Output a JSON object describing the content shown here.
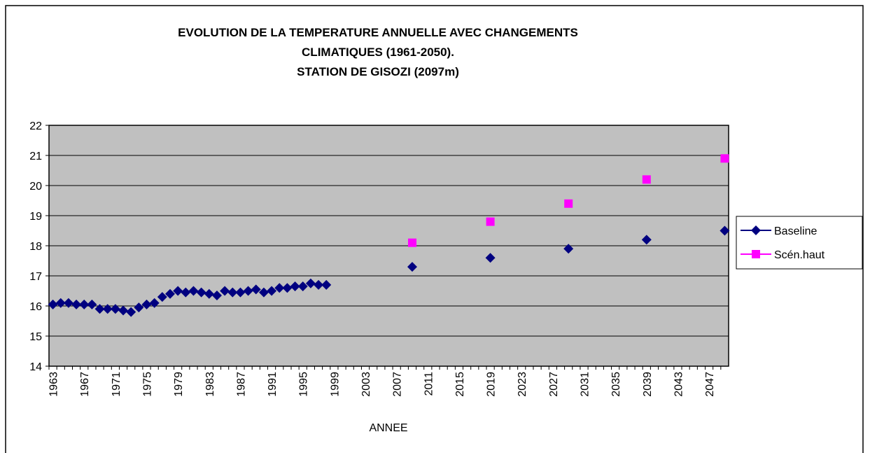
{
  "chart_data": {
    "type": "line",
    "show_lines": false,
    "title": [
      "EVOLUTION DE LA TEMPERATURE ANNUELLE  AVEC CHANGEMENTS",
      "CLIMATIQUES (1961-2050).",
      "STATION DE GISOZI (2097m)"
    ],
    "x_label": "ANNEE",
    "categories": [
      "1963",
      null,
      null,
      null,
      "1967",
      null,
      null,
      null,
      "1971",
      null,
      null,
      null,
      "1975",
      null,
      null,
      null,
      "1979",
      null,
      null,
      null,
      "1983",
      null,
      null,
      null,
      "1987",
      null,
      null,
      null,
      "1991",
      null,
      null,
      null,
      "1995",
      null,
      null,
      null,
      "1999",
      null,
      null,
      null,
      "2003",
      null,
      null,
      null,
      "2007",
      null,
      null,
      null,
      "2011",
      null,
      null,
      null,
      "2015",
      null,
      null,
      null,
      "2019",
      null,
      null,
      null,
      "2023",
      null,
      null,
      null,
      "2027",
      null,
      null,
      null,
      "2031",
      null,
      null,
      null,
      "2035",
      null,
      null,
      null,
      "2039",
      null,
      null,
      null,
      "2043",
      null,
      null,
      null,
      "2047",
      null,
      null
    ],
    "series": [
      {
        "name": "Baseline",
        "color": "#000080",
        "marker": "diamond",
        "values": [
          16.05,
          16.1,
          16.1,
          16.05,
          16.05,
          16.05,
          15.9,
          15.9,
          15.9,
          15.85,
          15.8,
          15.95,
          16.05,
          16.1,
          16.3,
          16.4,
          16.5,
          16.45,
          16.5,
          16.45,
          16.4,
          16.35,
          16.5,
          16.45,
          16.45,
          16.5,
          16.55,
          16.45,
          16.5,
          16.6,
          16.6,
          16.65,
          16.65,
          16.75,
          16.7,
          16.7,
          null,
          null,
          null,
          null,
          null,
          null,
          null,
          null,
          null,
          null,
          17.3,
          null,
          null,
          null,
          null,
          null,
          null,
          null,
          null,
          null,
          17.6,
          null,
          null,
          null,
          null,
          null,
          null,
          null,
          null,
          null,
          17.9,
          null,
          null,
          null,
          null,
          null,
          null,
          null,
          null,
          null,
          18.2,
          null,
          null,
          null,
          null,
          null,
          null,
          null,
          null,
          null,
          18.5
        ]
      },
      {
        "name": "Scén.haut",
        "color": "#ff00ff",
        "marker": "square",
        "values": [
          null,
          null,
          null,
          null,
          null,
          null,
          null,
          null,
          null,
          null,
          null,
          null,
          null,
          null,
          null,
          null,
          null,
          null,
          null,
          null,
          null,
          null,
          null,
          null,
          null,
          null,
          null,
          null,
          null,
          null,
          null,
          null,
          null,
          null,
          null,
          null,
          null,
          null,
          null,
          null,
          null,
          null,
          null,
          null,
          null,
          null,
          18.1,
          null,
          null,
          null,
          null,
          null,
          null,
          null,
          null,
          null,
          18.8,
          null,
          null,
          null,
          null,
          null,
          null,
          null,
          null,
          null,
          19.4,
          null,
          null,
          null,
          null,
          null,
          null,
          null,
          null,
          null,
          20.2,
          null,
          null,
          null,
          null,
          null,
          null,
          null,
          null,
          null,
          20.9
        ]
      }
    ],
    "ylim": [
      14,
      22
    ],
    "yticks": [
      14,
      15,
      16,
      17,
      18,
      19,
      20,
      21,
      22
    ],
    "grid": true,
    "legend": "right",
    "plot_background": "#c0c0c0"
  }
}
